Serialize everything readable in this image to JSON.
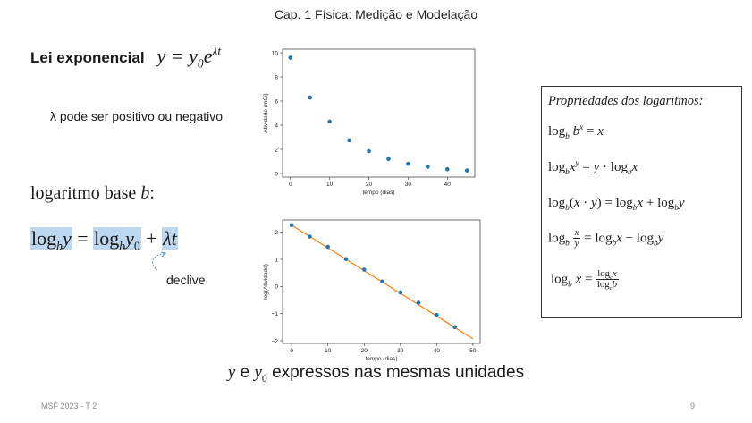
{
  "header": {
    "title": "Cap. 1 Física: Medição e Modelação"
  },
  "left": {
    "lei_label": "Lei exponencial",
    "lambda_note": "λ pode ser positivo ou negativo",
    "log_base_text": "logaritmo base",
    "log_base_var": "b",
    "log_base_colon": ":",
    "declive_label": "declive"
  },
  "props": {
    "title": "Propriedades dos logaritmos:"
  },
  "bottom_caption": {
    "y": "y",
    "e": " e ",
    "y0": "y",
    "y0_sub": "0",
    "rest": " expressos nas mesmas unidades"
  },
  "footer": {
    "left": "MSF 2023 - T 2",
    "page": "9"
  },
  "colors": {
    "accent_point": "#1f77b4",
    "fit_line": "#ff7f0e",
    "highlight": "#bcd7ef"
  },
  "chart_data": [
    {
      "type": "scatter",
      "title": "",
      "xlabel": "tempo (dias)",
      "ylabel": "Atividade (mCi)",
      "xlim": [
        -2,
        47
      ],
      "ylim": [
        -0.3,
        10.3
      ],
      "xticks": [
        0,
        10,
        20,
        30,
        40
      ],
      "yticks": [
        0,
        2,
        4,
        6,
        8,
        10
      ],
      "grid": false,
      "series": [
        {
          "x": [
            0,
            5,
            10,
            15,
            20,
            25,
            30,
            35,
            40,
            45
          ],
          "values": [
            9.6,
            6.3,
            4.3,
            2.75,
            1.85,
            1.2,
            0.8,
            0.55,
            0.35,
            0.25
          ]
        }
      ]
    },
    {
      "type": "scatter",
      "title": "",
      "xlabel": "tempo (dias)",
      "ylabel": "log(Atividade)",
      "xlim": [
        -2.5,
        52
      ],
      "ylim": [
        -2.1,
        2.45
      ],
      "xticks": [
        0,
        10,
        20,
        30,
        40,
        50
      ],
      "yticks": [
        -2,
        -1,
        0,
        1,
        2
      ],
      "grid": false,
      "series": [
        {
          "x": [
            0,
            5,
            10,
            15,
            20,
            25,
            30,
            35,
            40,
            45
          ],
          "values": [
            2.26,
            1.84,
            1.46,
            1.01,
            0.62,
            0.18,
            -0.22,
            -0.6,
            -1.05,
            -1.5
          ]
        }
      ],
      "fit_line": {
        "x": [
          0,
          50
        ],
        "values": [
          2.26,
          -1.93
        ]
      }
    }
  ]
}
